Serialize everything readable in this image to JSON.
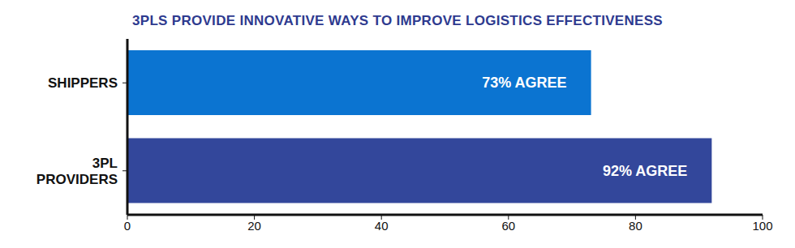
{
  "chart_data": {
    "type": "bar",
    "title": "3PLS PROVIDE INNOVATIVE WAYS TO IMPROVE LOGISTICS EFFECTIVENESS",
    "orientation": "horizontal",
    "categories": [
      "SHIPPERS",
      "3PL PROVIDERS"
    ],
    "values": [
      73,
      92
    ],
    "value_labels": [
      "73% AGREE",
      "92% AGREE"
    ],
    "colors": [
      "#0b74d1",
      "#33479b"
    ],
    "xlim": [
      0,
      100
    ],
    "xticks": [
      0,
      20,
      40,
      60,
      80,
      100
    ],
    "grid": false,
    "data_labels": true
  }
}
